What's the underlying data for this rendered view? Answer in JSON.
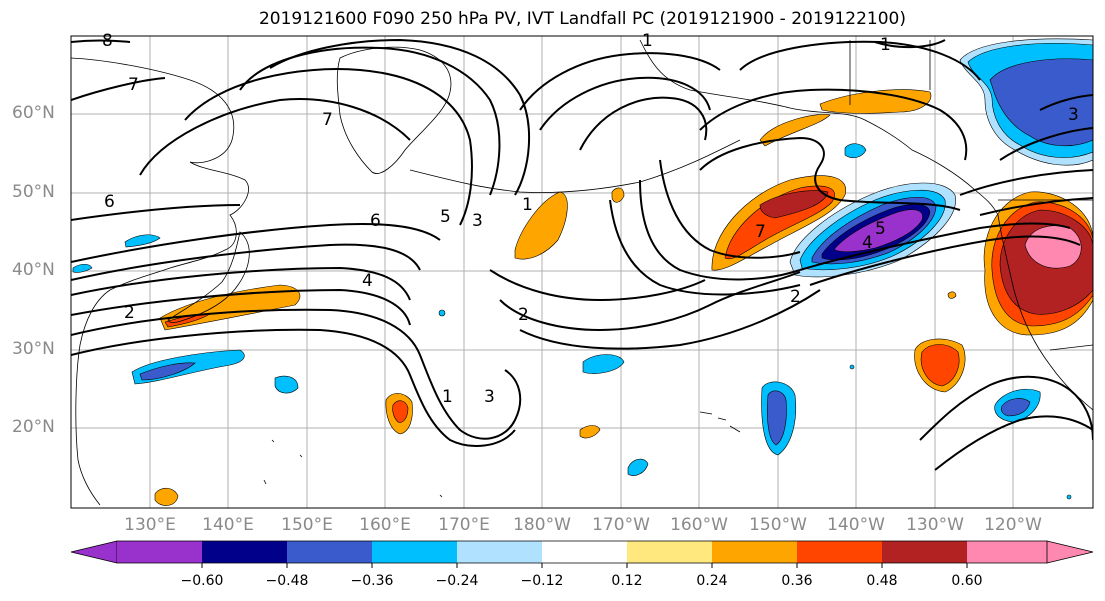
{
  "title": "2019121600 F090 250 hPa PV, IVT Landfall PC (2019121900 - 2019122100)",
  "lat_labels": [
    "60°N",
    "50°N",
    "40°N",
    "30°N",
    "20°N"
  ],
  "lon_labels": [
    "130°E",
    "140°E",
    "150°E",
    "160°E",
    "170°E",
    "180°W",
    "170°W",
    "160°W",
    "150°W",
    "140°W",
    "130°W",
    "120°W"
  ],
  "colorbar": {
    "ticks": [
      "−0.60",
      "−0.48",
      "−0.36",
      "−0.24",
      "−0.12",
      "0.12",
      "0.24",
      "0.36",
      "0.48",
      "0.60"
    ],
    "colors": [
      "#9932cc",
      "#00008b",
      "#3a5bcc",
      "#00bfff",
      "#b0e2ff",
      "#ffffff",
      "#ffe97f",
      "#ffa500",
      "#ff4500",
      "#b22222",
      "#ff88b0"
    ]
  },
  "contour_labels": [
    "6",
    "7",
    "7",
    "6",
    "5",
    "3",
    "1",
    "4",
    "2",
    "2",
    "3",
    "1",
    "7",
    "5",
    "4",
    "2",
    "1",
    "3",
    "8",
    "1"
  ],
  "colors": {
    "purple": "#9932cc",
    "navy": "#00008b",
    "blue": "#3a5bcc",
    "deepskyblue": "#00bfff",
    "lightblue": "#b0e2ff",
    "yellow": "#ffe97f",
    "orange": "#ffa500",
    "redorange": "#ff4500",
    "firebrick": "#b22222",
    "pink": "#ff88b0",
    "coast": "#000000",
    "contour": "#000000"
  }
}
